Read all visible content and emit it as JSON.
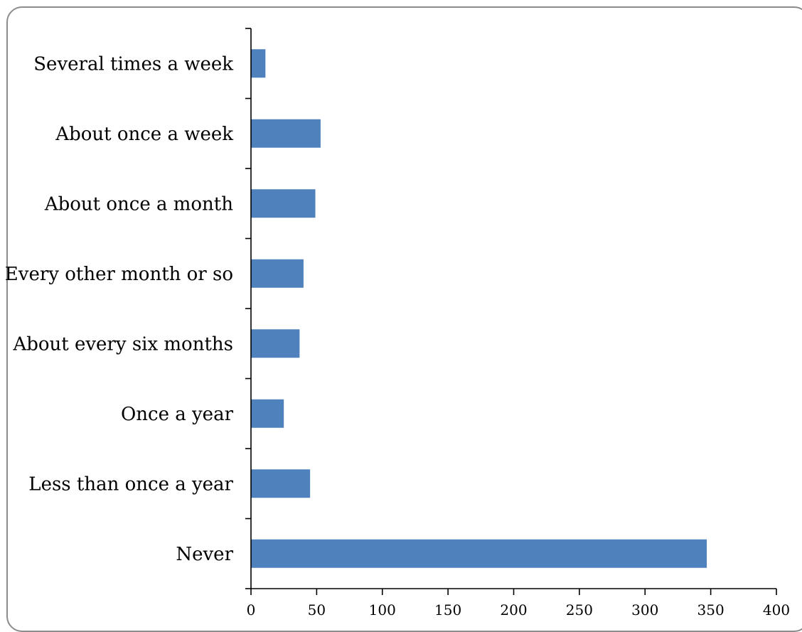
{
  "chart_data": {
    "type": "bar",
    "orientation": "horizontal",
    "categories": [
      "Several times a week",
      "About once a week",
      "About once a month",
      "Every other month or so",
      "About every six months",
      "Once a year",
      "Less than once a year",
      "Never"
    ],
    "values": [
      11,
      53,
      49,
      40,
      37,
      25,
      45,
      347
    ],
    "title": "",
    "xlabel": "",
    "ylabel": "",
    "xlim": [
      0,
      400
    ],
    "xticks": [
      "0",
      "50",
      "100",
      "150",
      "200",
      "250",
      "300",
      "350",
      "400"
    ],
    "grid": false,
    "legend": "none",
    "bar_color": "#4f81bd"
  }
}
